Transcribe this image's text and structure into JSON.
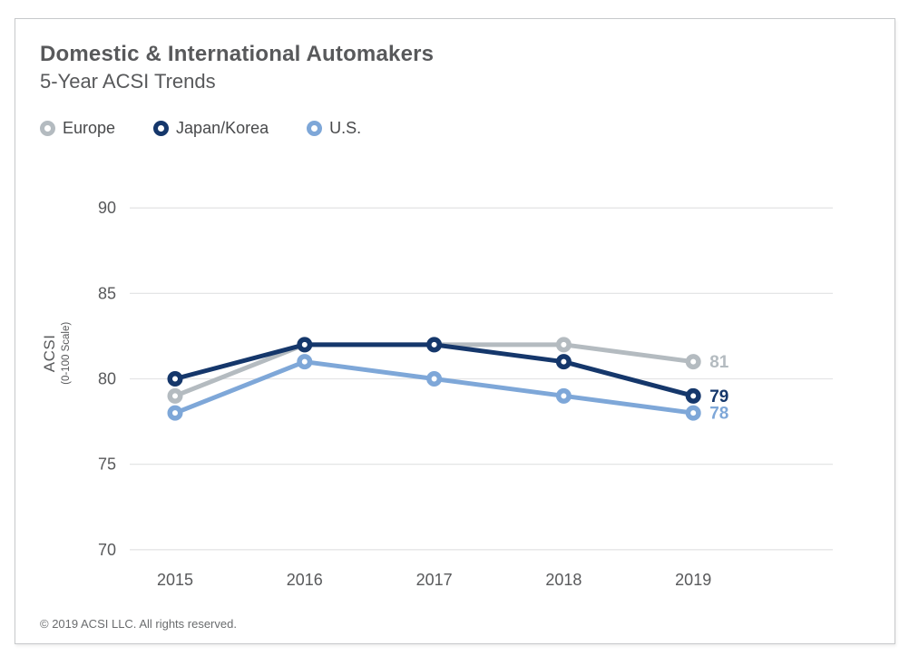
{
  "chart_data": {
    "type": "line",
    "title": "Domestic & International Automakers",
    "subtitle": "5-Year ACSI Trends",
    "x": [
      "2015",
      "2016",
      "2017",
      "2018",
      "2019"
    ],
    "series": [
      {
        "name": "Europe",
        "color": "#b4bbc0",
        "values": [
          79,
          82,
          82,
          82,
          81
        ],
        "end_label": "81",
        "zorder": 1
      },
      {
        "name": "Japan/Korea",
        "color": "#15376b",
        "values": [
          80,
          82,
          82,
          81,
          79
        ],
        "end_label": "79",
        "zorder": 3
      },
      {
        "name": "U.S.",
        "color": "#7ea7d8",
        "values": [
          78,
          81,
          80,
          79,
          78
        ],
        "end_label": "78",
        "zorder": 2
      }
    ],
    "xlabel": "",
    "ylabel": "ACSI",
    "ylabel_note": "(0-100 Scale)",
    "yticks": [
      90,
      85,
      80,
      75,
      70
    ],
    "ylim": [
      68,
      92
    ],
    "grid": true,
    "legend_position": "top-left",
    "marker_style": "open-circle"
  },
  "footer": {
    "copyright": "© 2019 ACSI LLC. All rights reserved."
  }
}
